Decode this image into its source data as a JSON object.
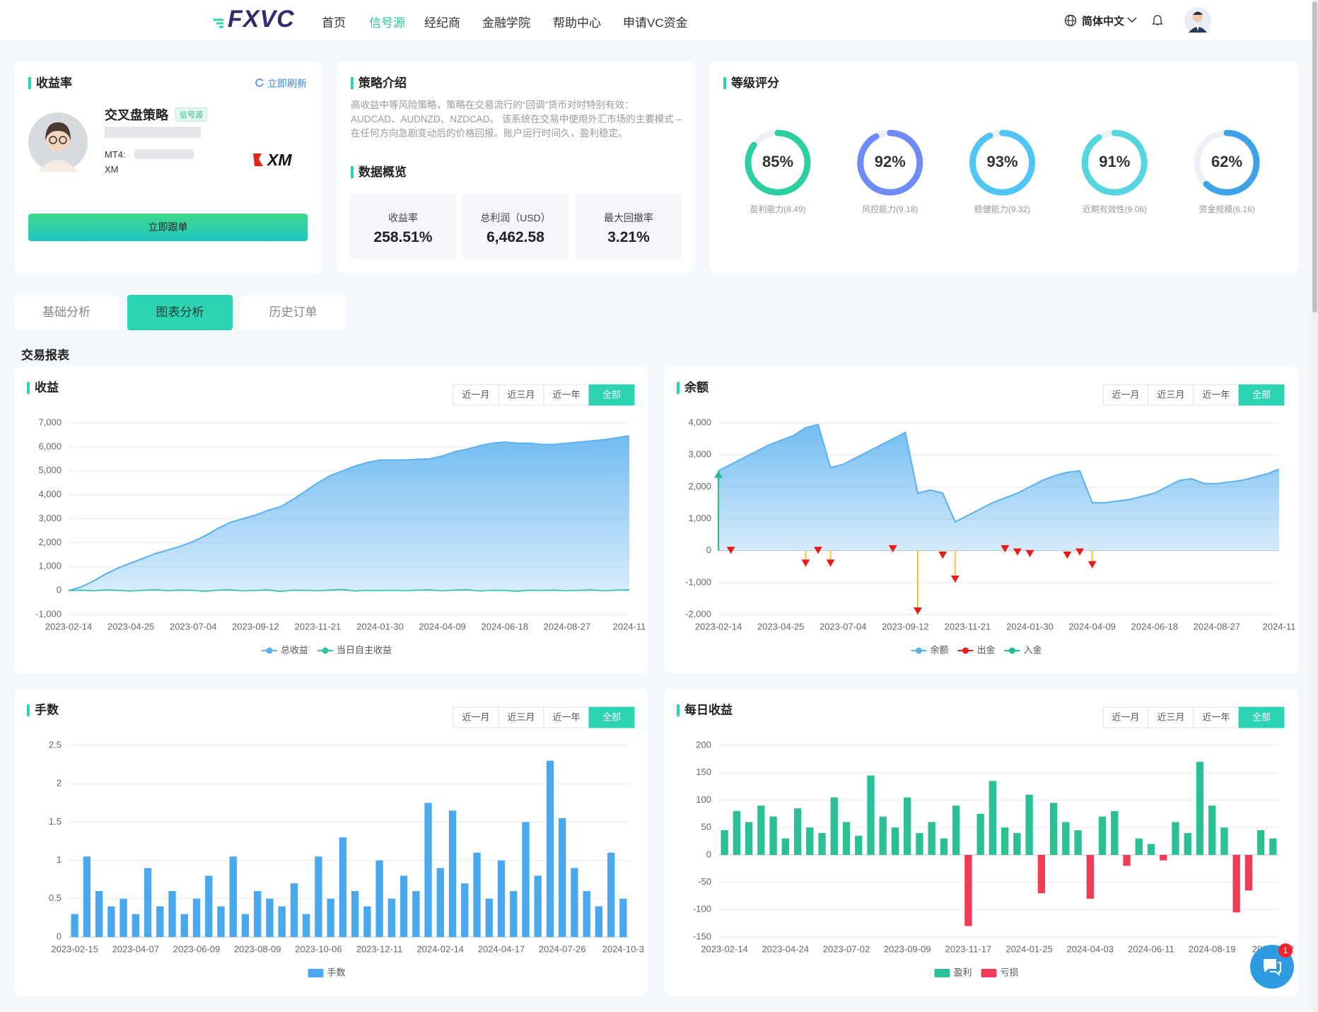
{
  "nav": {
    "logo": "FXVC",
    "items": [
      "首页",
      "信号源",
      "经纪商",
      "金融学院",
      "帮助中心",
      "申请VC资金"
    ],
    "active": 1,
    "language": "简体中文"
  },
  "profit_card": {
    "title": "收益率",
    "refresh": "立即刷新",
    "name": "交叉盘策略",
    "badge": "信号源",
    "mt4": "MT4:",
    "broker": "XM",
    "broker_logo": "XM",
    "button": "立即跟单"
  },
  "strategy": {
    "title": "策略介绍",
    "text": "高收益中等风险策略，策略在交易流行的“回调”货币对时特别有效：AUDCAD、AUDNZD、NZDCAD。 该系统在交易中使用外汇市场的主要模式 – 在任何方向急剧变动后的价格回报。账户运行时间久，盈利稳定。",
    "overview_title": "数据概览",
    "stats": [
      {
        "label": "收益率",
        "value": "258.51%"
      },
      {
        "label": "总利润（USD）",
        "value": "6,462.58"
      },
      {
        "label": "最大回撤率",
        "value": "3.21%"
      }
    ]
  },
  "rating": {
    "title": "等级评分",
    "items": [
      {
        "value": 85,
        "value_label": "85%",
        "label": "盈利能力(8.49)",
        "color": "#2ccf9f"
      },
      {
        "value": 92,
        "value_label": "92%",
        "label": "风控能力(9.18)",
        "color": "#6f8bfa"
      },
      {
        "value": 93,
        "value_label": "93%",
        "label": "稳健能力(9.32)",
        "color": "#4fc6f5"
      },
      {
        "value": 91,
        "value_label": "91%",
        "label": "近期有效性(9.06)",
        "color": "#55d6df"
      },
      {
        "value": 62,
        "value_label": "62%",
        "label": "资金规模(6.16)",
        "color": "#3ea2e8"
      }
    ]
  },
  "tabs": {
    "items": [
      "基础分析",
      "图表分析",
      "历史订单"
    ],
    "active": 1
  },
  "section_title": "交易报表",
  "chat": {
    "badge": "1"
  },
  "chart_data": [
    {
      "type": "area",
      "title": "收益",
      "range_buttons": [
        "近一月",
        "近三月",
        "近一年",
        "全部"
      ],
      "active_range": 3,
      "categories": [
        "2023-02-14",
        null,
        null,
        null,
        null,
        "2023-04-25",
        null,
        null,
        null,
        null,
        "2023-07-04",
        null,
        null,
        null,
        null,
        "2023-09-12",
        null,
        null,
        null,
        null,
        "2023-11-21",
        null,
        null,
        null,
        null,
        "2024-01-30",
        null,
        null,
        null,
        null,
        "2024-04-09",
        null,
        null,
        null,
        null,
        "2024-06-18",
        null,
        null,
        null,
        null,
        "2024-08-27",
        null,
        null,
        null,
        null,
        "2024-11"
      ],
      "ylim": [
        -1000,
        7000
      ],
      "yticks": [
        {
          "value": -1000,
          "label": "-1,000"
        },
        0,
        {
          "value": 1000,
          "label": "1,000"
        },
        {
          "value": 2000,
          "label": "2,000"
        },
        {
          "value": 3000,
          "label": "3,000"
        },
        {
          "value": 4000,
          "label": "4,000"
        },
        {
          "value": 5000,
          "label": "5,000"
        },
        {
          "value": 6000,
          "label": "6,000"
        },
        {
          "value": 7000,
          "label": "7,000"
        }
      ],
      "series": [
        {
          "name": "总收益",
          "type": "area",
          "color": "#5ab1ef",
          "values": [
            0,
            150,
            400,
            700,
            950,
            1150,
            1350,
            1550,
            1700,
            1850,
            2050,
            2300,
            2600,
            2850,
            3000,
            3150,
            3350,
            3500,
            3800,
            4150,
            4500,
            4800,
            5000,
            5200,
            5350,
            5450,
            5450,
            5450,
            5480,
            5500,
            5620,
            5800,
            5900,
            6050,
            6150,
            6200,
            6150,
            6150,
            6100,
            6100,
            6150,
            6200,
            6250,
            6300,
            6380,
            6462
          ]
        },
        {
          "name": "当日自主收益",
          "type": "line",
          "color": "#2ec4a6",
          "values": [
            0,
            20,
            -10,
            30,
            10,
            -20,
            15,
            40,
            -5,
            25,
            10,
            -30,
            20,
            35,
            -15,
            10,
            30,
            -40,
            20,
            15,
            -10,
            25,
            50,
            -20,
            10,
            0,
            15,
            -5,
            20,
            30,
            -10,
            25,
            40,
            -20,
            15,
            10,
            -30,
            20,
            5,
            25,
            -10,
            15,
            30,
            -15,
            20,
            35
          ]
        }
      ]
    },
    {
      "type": "area",
      "title": "余额",
      "range_buttons": [
        "近一月",
        "近三月",
        "近一年",
        "全部"
      ],
      "active_range": 3,
      "categories": [
        "2023-02-14",
        null,
        null,
        null,
        null,
        "2023-04-25",
        null,
        null,
        null,
        null,
        "2023-07-04",
        null,
        null,
        null,
        null,
        "2023-09-12",
        null,
        null,
        null,
        null,
        "2023-11-21",
        null,
        null,
        null,
        null,
        "2024-01-30",
        null,
        null,
        null,
        null,
        "2024-04-09",
        null,
        null,
        null,
        null,
        "2024-06-18",
        null,
        null,
        null,
        null,
        "2024-08-27",
        null,
        null,
        null,
        null,
        "2024-11"
      ],
      "ylim": [
        -2000,
        4000
      ],
      "yticks": [
        {
          "value": -2000,
          "label": "-2,000"
        },
        {
          "value": -1000,
          "label": "-1,000"
        },
        0,
        {
          "value": 1000,
          "label": "1,000"
        },
        {
          "value": 2000,
          "label": "2,000"
        },
        {
          "value": 3000,
          "label": "3,000"
        },
        {
          "value": 4000,
          "label": "4,000"
        }
      ],
      "series": [
        {
          "name": "余额",
          "type": "area",
          "color": "#5ab1ef",
          "values": [
            2500,
            2700,
            2900,
            3100,
            3300,
            3450,
            3600,
            3850,
            3950,
            2600,
            2700,
            2900,
            3100,
            3300,
            3500,
            3700,
            1800,
            1900,
            1800,
            900,
            1100,
            1300,
            1500,
            1650,
            1800,
            2000,
            2200,
            2350,
            2450,
            2500,
            1500,
            1500,
            1550,
            1600,
            1700,
            1800,
            2000,
            2200,
            2250,
            2100,
            2100,
            2150,
            2200,
            2300,
            2400,
            2550
          ]
        },
        {
          "name": "出金",
          "type": "stem",
          "color": "#e61c1c",
          "values": [
            null,
            -100,
            null,
            null,
            null,
            null,
            null,
            -500,
            -100,
            -500,
            null,
            null,
            null,
            null,
            -50,
            null,
            -2000,
            null,
            -250,
            -1000,
            null,
            null,
            null,
            -50,
            -150,
            -200,
            null,
            null,
            -250,
            -150,
            -550,
            null,
            null,
            null,
            null,
            null,
            null,
            null,
            null,
            null,
            null,
            null,
            null,
            null,
            null,
            null
          ]
        },
        {
          "name": "入金",
          "type": "stem",
          "color": "#22b896",
          "values": [
            2500,
            null,
            null,
            null,
            null,
            null,
            null,
            null,
            null,
            null,
            null,
            null,
            null,
            null,
            null,
            null,
            null,
            null,
            null,
            null,
            null,
            null,
            null,
            null,
            null,
            null,
            null,
            null,
            null,
            null,
            null,
            null,
            null,
            null,
            null,
            null,
            null,
            null,
            null,
            null,
            null,
            null,
            null,
            null,
            null,
            null
          ]
        }
      ]
    },
    {
      "type": "bar",
      "title": "手数",
      "range_buttons": [
        "近一月",
        "近三月",
        "近一年",
        "全部"
      ],
      "active_range": 3,
      "categories": [
        "2023-02-15",
        null,
        null,
        null,
        null,
        "2023-04-07",
        null,
        null,
        null,
        null,
        "2023-06-09",
        null,
        null,
        null,
        null,
        "2023-08-09",
        null,
        null,
        null,
        null,
        "2023-10-06",
        null,
        null,
        null,
        null,
        "2023-12-11",
        null,
        null,
        null,
        null,
        "2024-02-14",
        null,
        null,
        null,
        null,
        "2024-04-17",
        null,
        null,
        null,
        null,
        "2024-07-26",
        null,
        null,
        null,
        null,
        "2024-10-3"
      ],
      "ylim": [
        0,
        2.5
      ],
      "yticks": [
        0,
        0.5,
        1,
        1.5,
        2,
        2.5
      ],
      "series": [
        {
          "name": "手数",
          "color": "#4aa8ee",
          "values": [
            0.3,
            1.05,
            0.6,
            0.4,
            0.5,
            0.3,
            0.9,
            0.4,
            0.6,
            0.3,
            0.5,
            0.8,
            0.4,
            1.05,
            0.3,
            0.6,
            0.5,
            0.4,
            0.7,
            0.3,
            1.05,
            0.5,
            1.3,
            0.6,
            0.4,
            1.0,
            0.5,
            0.8,
            0.6,
            1.75,
            0.9,
            1.65,
            0.7,
            1.1,
            0.5,
            1.0,
            0.6,
            1.5,
            0.8,
            2.3,
            1.55,
            0.9,
            0.6,
            0.4,
            1.1,
            0.5
          ]
        }
      ]
    },
    {
      "type": "bar",
      "title": "每日收益",
      "range_buttons": [
        "近一月",
        "近三月",
        "近一年",
        "全部"
      ],
      "active_range": 3,
      "categories": [
        "2023-02-14",
        null,
        null,
        null,
        null,
        "2023-04-24",
        null,
        null,
        null,
        null,
        "2023-07-02",
        null,
        null,
        null,
        null,
        "2023-09-09",
        null,
        null,
        null,
        null,
        "2023-11-17",
        null,
        null,
        null,
        null,
        "2024-01-25",
        null,
        null,
        null,
        null,
        "2024-04-03",
        null,
        null,
        null,
        null,
        "2024-06-11",
        null,
        null,
        null,
        null,
        "2024-08-19",
        null,
        null,
        null,
        null,
        "2024-10-2"
      ],
      "ylim": [
        -150,
        200
      ],
      "yticks": [
        -150,
        -100,
        -50,
        0,
        50,
        100,
        150,
        200
      ],
      "series": [
        {
          "name": "盈利",
          "color": "#2bbf96",
          "values": [
            45,
            80,
            60,
            90,
            70,
            30,
            85,
            50,
            40,
            105,
            60,
            35,
            145,
            70,
            50,
            105,
            40,
            60,
            30,
            90,
            null,
            75,
            135,
            50,
            40,
            110,
            null,
            95,
            60,
            45,
            null,
            70,
            80,
            null,
            30,
            20,
            null,
            60,
            40,
            170,
            90,
            50,
            null,
            null,
            45,
            30
          ]
        },
        {
          "name": "亏损",
          "color": "#ee3d55",
          "values": [
            null,
            null,
            null,
            null,
            null,
            null,
            null,
            null,
            null,
            null,
            null,
            null,
            null,
            null,
            null,
            null,
            null,
            null,
            null,
            null,
            -130,
            null,
            null,
            null,
            null,
            null,
            -70,
            null,
            null,
            null,
            -80,
            null,
            null,
            -20,
            null,
            null,
            -10,
            null,
            null,
            null,
            null,
            null,
            -105,
            -65,
            null,
            null
          ]
        }
      ]
    }
  ]
}
